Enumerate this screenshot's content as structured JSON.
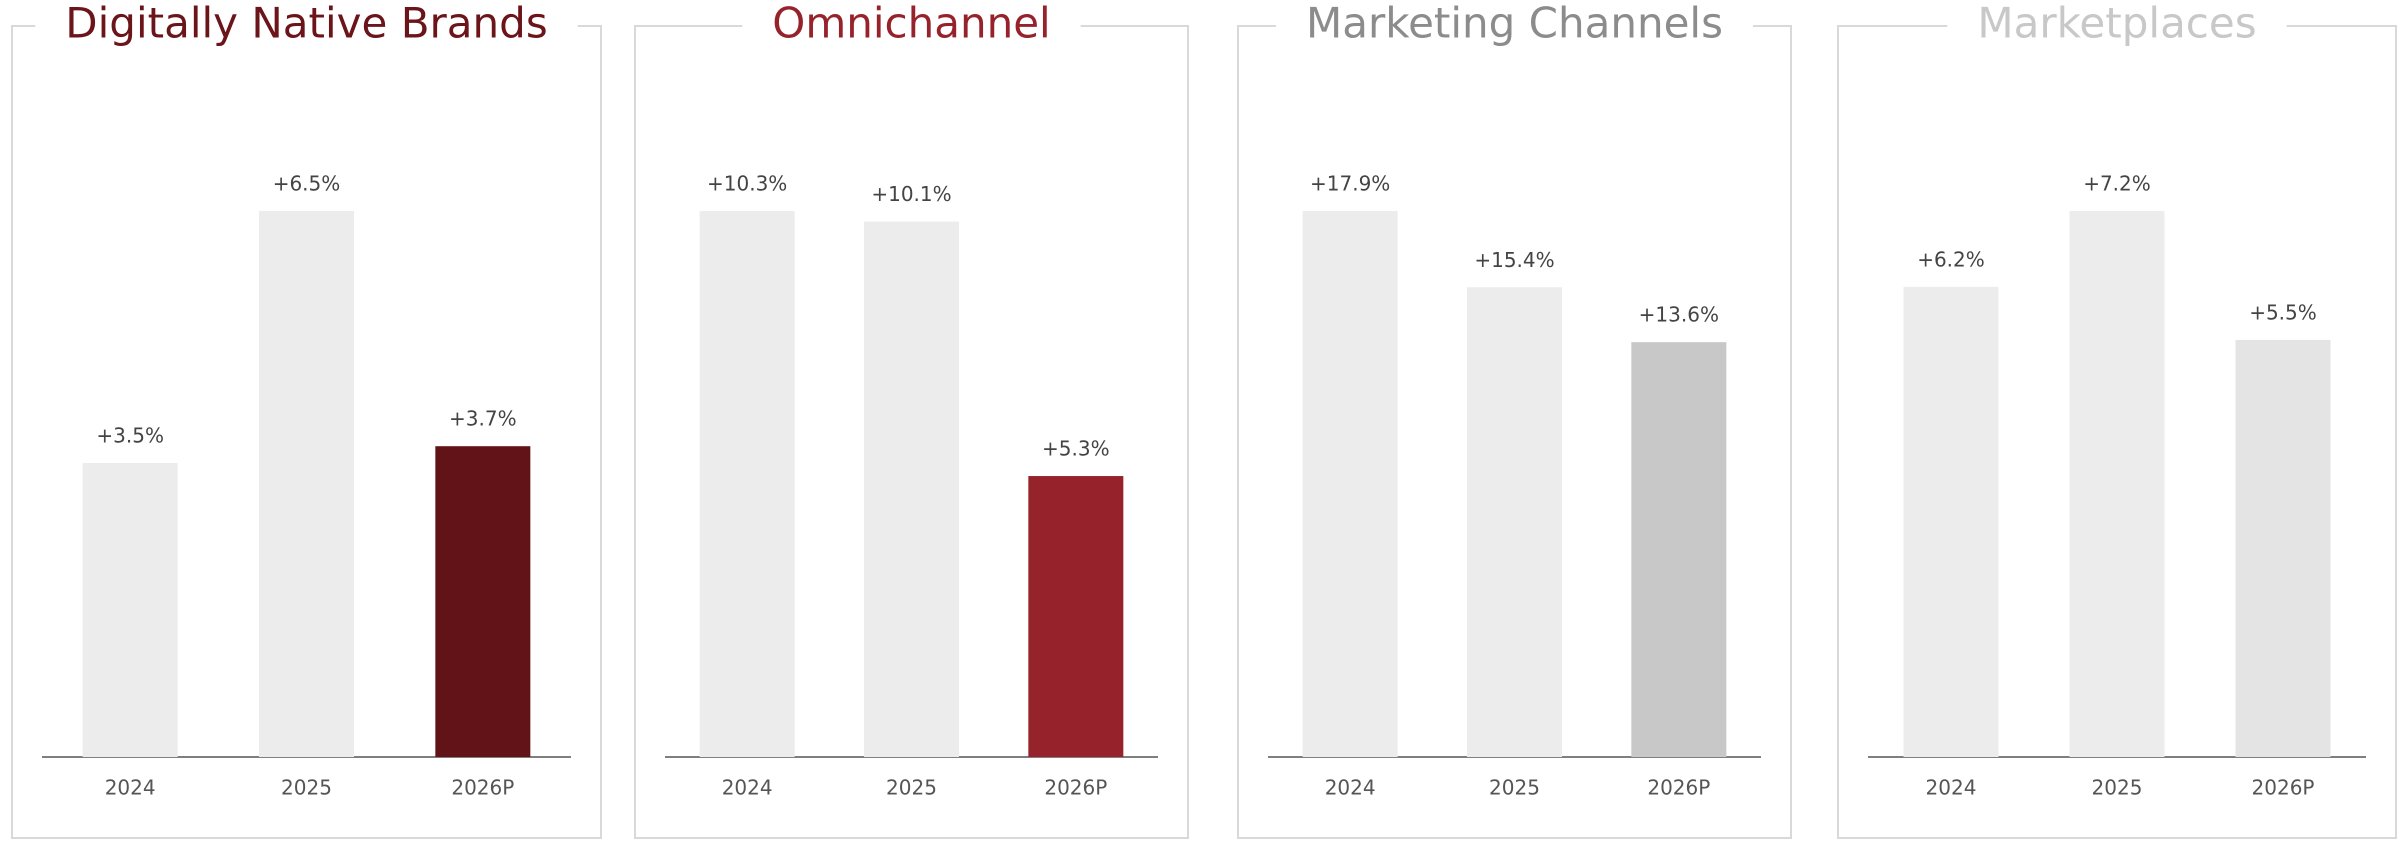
{
  "chart_data": [
    {
      "type": "bar",
      "title": "Digitally Native Brands",
      "title_color": "#6b1419",
      "categories": [
        "2024",
        "2025",
        "2026P"
      ],
      "values": [
        3.5,
        6.5,
        3.7
      ],
      "value_labels": [
        "+3.5%",
        "+6.5%",
        "+3.7%"
      ],
      "colors": [
        "#ececec",
        "#ececec",
        "#621317"
      ]
    },
    {
      "type": "bar",
      "title": "Omnichannel",
      "title_color": "#96232b",
      "categories": [
        "2024",
        "2025",
        "2026P"
      ],
      "values": [
        10.3,
        10.1,
        5.3
      ],
      "value_labels": [
        "+10.3%",
        "+10.1%",
        "+5.3%"
      ],
      "colors": [
        "#ececec",
        "#ececec",
        "#96232b"
      ]
    },
    {
      "type": "bar",
      "title": "Marketing Channels",
      "title_color": "#8c8c8c",
      "categories": [
        "2024",
        "2025",
        "2026P"
      ],
      "values": [
        17.9,
        15.4,
        13.6
      ],
      "value_labels": [
        "+17.9%",
        "+15.4%",
        "+13.6%"
      ],
      "colors": [
        "#ececec",
        "#ececec",
        "#c8c8c8"
      ]
    },
    {
      "type": "bar",
      "title": "Marketplaces",
      "title_color": "#c8c8c8",
      "categories": [
        "2024",
        "2025",
        "2026P"
      ],
      "values": [
        6.2,
        7.2,
        5.5
      ],
      "value_labels": [
        "+6.2%",
        "+7.2%",
        "+5.5%"
      ],
      "colors": [
        "#ececec",
        "#ececec",
        "#e4e4e4"
      ]
    }
  ]
}
